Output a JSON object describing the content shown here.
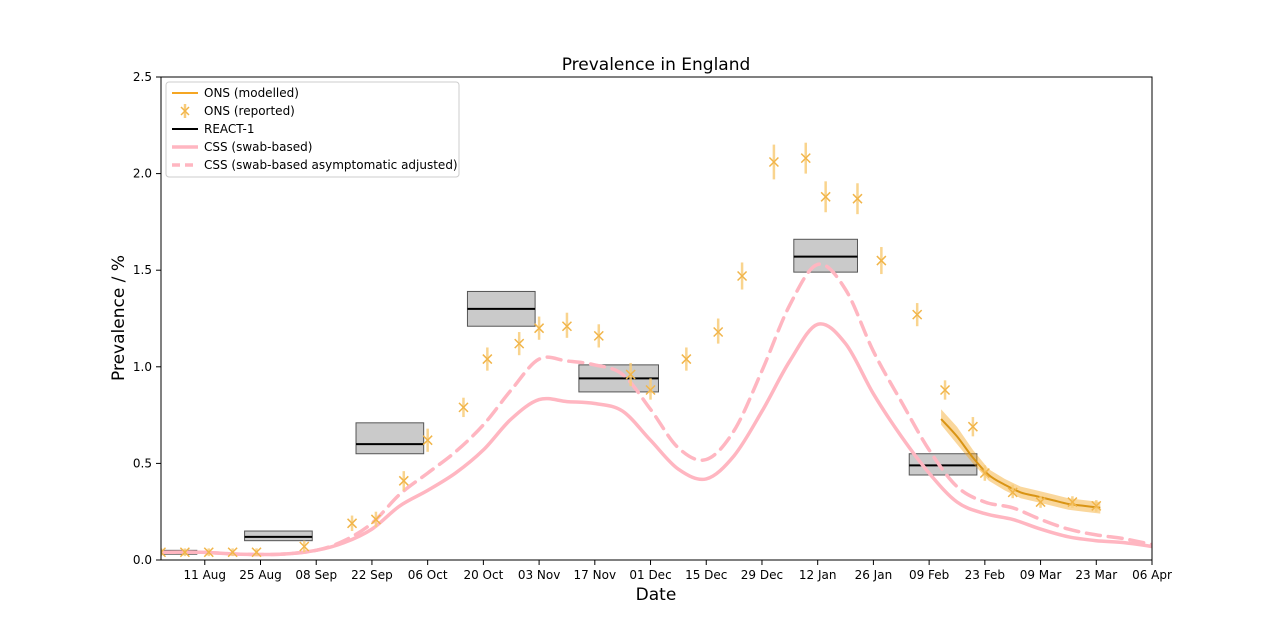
{
  "chart_data": {
    "type": "line",
    "title": "Prevalence in England",
    "xlabel": "Date",
    "ylabel": "Prevalence / %",
    "x_range": [
      "2020-07-31",
      "2021-04-06"
    ],
    "ylim": [
      0,
      2.5
    ],
    "y_ticks": [
      "0.0",
      "0.5",
      "1.0",
      "1.5",
      "2.0",
      "2.5"
    ],
    "x_ticks": [
      {
        "date": "2020-08-11",
        "label": "11 Aug"
      },
      {
        "date": "2020-08-25",
        "label": "25 Aug"
      },
      {
        "date": "2020-09-08",
        "label": "08 Sep"
      },
      {
        "date": "2020-09-22",
        "label": "22 Sep"
      },
      {
        "date": "2020-10-06",
        "label": "06 Oct"
      },
      {
        "date": "2020-10-20",
        "label": "20 Oct"
      },
      {
        "date": "2020-11-03",
        "label": "03 Nov"
      },
      {
        "date": "2020-11-17",
        "label": "17 Nov"
      },
      {
        "date": "2020-12-01",
        "label": "01 Dec"
      },
      {
        "date": "2020-12-15",
        "label": "15 Dec"
      },
      {
        "date": "2020-12-29",
        "label": "29 Dec"
      },
      {
        "date": "2021-01-12",
        "label": "12 Jan"
      },
      {
        "date": "2021-01-26",
        "label": "26 Jan"
      },
      {
        "date": "2021-02-09",
        "label": "09 Feb"
      },
      {
        "date": "2021-02-23",
        "label": "23 Feb"
      },
      {
        "date": "2021-03-09",
        "label": "09 Mar"
      },
      {
        "date": "2021-03-23",
        "label": "23 Mar"
      },
      {
        "date": "2021-04-06",
        "label": "06 Apr"
      }
    ],
    "legend_position": "top-left",
    "grid": false,
    "colors": {
      "ons": "#f5a623",
      "ons_reported": "#f8cc7a",
      "react": "#000000",
      "react_band": "#9e9e9e",
      "css": "#ffb6c1"
    },
    "legend": [
      {
        "label": "ONS (modelled)",
        "style": "ons-line"
      },
      {
        "label": "ONS (reported)",
        "style": "ons-marker"
      },
      {
        "label": "REACT-1",
        "style": "react-line"
      },
      {
        "label": "CSS (swab-based)",
        "style": "css-solid"
      },
      {
        "label": "CSS (swab-based asymptomatic adjusted)",
        "style": "css-dashed"
      }
    ],
    "series": [
      {
        "name": "CSS (swab-based)",
        "style": "solid",
        "points": [
          [
            "2020-07-31",
            0.04
          ],
          [
            "2020-08-10",
            0.04
          ],
          [
            "2020-08-20",
            0.03
          ],
          [
            "2020-08-30",
            0.03
          ],
          [
            "2020-09-08",
            0.05
          ],
          [
            "2020-09-15",
            0.09
          ],
          [
            "2020-09-22",
            0.16
          ],
          [
            "2020-09-29",
            0.28
          ],
          [
            "2020-10-06",
            0.36
          ],
          [
            "2020-10-13",
            0.45
          ],
          [
            "2020-10-20",
            0.57
          ],
          [
            "2020-10-27",
            0.73
          ],
          [
            "2020-11-03",
            0.83
          ],
          [
            "2020-11-10",
            0.82
          ],
          [
            "2020-11-17",
            0.81
          ],
          [
            "2020-11-24",
            0.77
          ],
          [
            "2020-12-01",
            0.62
          ],
          [
            "2020-12-08",
            0.47
          ],
          [
            "2020-12-15",
            0.42
          ],
          [
            "2020-12-22",
            0.54
          ],
          [
            "2020-12-29",
            0.77
          ],
          [
            "2021-01-05",
            1.03
          ],
          [
            "2021-01-12",
            1.22
          ],
          [
            "2021-01-19",
            1.12
          ],
          [
            "2021-01-26",
            0.86
          ],
          [
            "2021-02-02",
            0.64
          ],
          [
            "2021-02-09",
            0.45
          ],
          [
            "2021-02-16",
            0.3
          ],
          [
            "2021-02-23",
            0.24
          ],
          [
            "2021-03-02",
            0.21
          ],
          [
            "2021-03-09",
            0.16
          ],
          [
            "2021-03-16",
            0.12
          ],
          [
            "2021-03-23",
            0.1
          ],
          [
            "2021-03-30",
            0.09
          ],
          [
            "2021-04-06",
            0.07
          ]
        ]
      },
      {
        "name": "CSS (swab-based asymptomatic adjusted)",
        "style": "dashed",
        "points": [
          [
            "2020-07-31",
            0.04
          ],
          [
            "2020-08-10",
            0.04
          ],
          [
            "2020-08-20",
            0.03
          ],
          [
            "2020-08-30",
            0.03
          ],
          [
            "2020-09-08",
            0.05
          ],
          [
            "2020-09-15",
            0.1
          ],
          [
            "2020-09-22",
            0.19
          ],
          [
            "2020-09-29",
            0.34
          ],
          [
            "2020-10-06",
            0.45
          ],
          [
            "2020-10-13",
            0.56
          ],
          [
            "2020-10-20",
            0.7
          ],
          [
            "2020-10-27",
            0.88
          ],
          [
            "2020-11-03",
            1.04
          ],
          [
            "2020-11-10",
            1.03
          ],
          [
            "2020-11-17",
            1.01
          ],
          [
            "2020-11-24",
            0.96
          ],
          [
            "2020-12-01",
            0.78
          ],
          [
            "2020-12-08",
            0.58
          ],
          [
            "2020-12-15",
            0.52
          ],
          [
            "2020-12-22",
            0.67
          ],
          [
            "2020-12-29",
            0.98
          ],
          [
            "2021-01-05",
            1.32
          ],
          [
            "2021-01-12",
            1.53
          ],
          [
            "2021-01-19",
            1.4
          ],
          [
            "2021-01-26",
            1.08
          ],
          [
            "2021-02-02",
            0.82
          ],
          [
            "2021-02-09",
            0.57
          ],
          [
            "2021-02-16",
            0.38
          ],
          [
            "2021-02-23",
            0.3
          ],
          [
            "2021-03-02",
            0.27
          ],
          [
            "2021-03-09",
            0.21
          ],
          [
            "2021-03-16",
            0.16
          ],
          [
            "2021-03-23",
            0.13
          ],
          [
            "2021-03-30",
            0.11
          ],
          [
            "2021-04-06",
            0.08
          ]
        ]
      },
      {
        "name": "ONS (modelled)",
        "style": "solid",
        "points": [
          [
            "2021-02-12",
            0.73
          ],
          [
            "2021-02-16",
            0.64
          ],
          [
            "2021-02-20",
            0.53
          ],
          [
            "2021-02-24",
            0.44
          ],
          [
            "2021-02-28",
            0.39
          ],
          [
            "2021-03-04",
            0.35
          ],
          [
            "2021-03-08",
            0.33
          ],
          [
            "2021-03-12",
            0.31
          ],
          [
            "2021-03-16",
            0.29
          ],
          [
            "2021-03-20",
            0.28
          ],
          [
            "2021-03-24",
            0.27
          ]
        ],
        "band": [
          [
            "2021-02-12",
            0.7,
            0.78
          ],
          [
            "2021-02-16",
            0.6,
            0.69
          ],
          [
            "2021-02-20",
            0.5,
            0.57
          ],
          [
            "2021-02-24",
            0.41,
            0.47
          ],
          [
            "2021-02-28",
            0.36,
            0.42
          ],
          [
            "2021-03-04",
            0.32,
            0.38
          ],
          [
            "2021-03-08",
            0.3,
            0.36
          ],
          [
            "2021-03-12",
            0.28,
            0.34
          ],
          [
            "2021-03-16",
            0.26,
            0.32
          ],
          [
            "2021-03-20",
            0.25,
            0.31
          ],
          [
            "2021-03-24",
            0.24,
            0.3
          ]
        ]
      }
    ],
    "ons_reported": [
      {
        "date": "2020-07-31",
        "value": 0.04,
        "low": 0.02,
        "high": 0.06
      },
      {
        "date": "2020-08-06",
        "value": 0.04,
        "low": 0.02,
        "high": 0.06
      },
      {
        "date": "2020-08-12",
        "value": 0.04,
        "low": 0.02,
        "high": 0.06
      },
      {
        "date": "2020-08-18",
        "value": 0.04,
        "low": 0.02,
        "high": 0.06
      },
      {
        "date": "2020-08-24",
        "value": 0.04,
        "low": 0.02,
        "high": 0.06
      },
      {
        "date": "2020-09-05",
        "value": 0.07,
        "low": 0.04,
        "high": 0.1
      },
      {
        "date": "2020-09-17",
        "value": 0.19,
        "low": 0.15,
        "high": 0.23
      },
      {
        "date": "2020-09-23",
        "value": 0.21,
        "low": 0.17,
        "high": 0.25
      },
      {
        "date": "2020-09-30",
        "value": 0.41,
        "low": 0.36,
        "high": 0.46
      },
      {
        "date": "2020-10-06",
        "value": 0.62,
        "low": 0.56,
        "high": 0.68
      },
      {
        "date": "2020-10-15",
        "value": 0.79,
        "low": 0.74,
        "high": 0.84
      },
      {
        "date": "2020-10-21",
        "value": 1.04,
        "low": 0.98,
        "high": 1.1
      },
      {
        "date": "2020-10-29",
        "value": 1.12,
        "low": 1.06,
        "high": 1.18
      },
      {
        "date": "2020-11-03",
        "value": 1.2,
        "low": 1.14,
        "high": 1.26
      },
      {
        "date": "2020-11-10",
        "value": 1.21,
        "low": 1.15,
        "high": 1.28
      },
      {
        "date": "2020-11-18",
        "value": 1.16,
        "low": 1.1,
        "high": 1.22
      },
      {
        "date": "2020-11-26",
        "value": 0.96,
        "low": 0.9,
        "high": 1.02
      },
      {
        "date": "2020-12-01",
        "value": 0.88,
        "low": 0.83,
        "high": 0.94
      },
      {
        "date": "2020-12-10",
        "value": 1.04,
        "low": 0.98,
        "high": 1.1
      },
      {
        "date": "2020-12-18",
        "value": 1.18,
        "low": 1.12,
        "high": 1.25
      },
      {
        "date": "2020-12-24",
        "value": 1.47,
        "low": 1.4,
        "high": 1.54
      },
      {
        "date": "2021-01-01",
        "value": 2.06,
        "low": 1.97,
        "high": 2.15
      },
      {
        "date": "2021-01-09",
        "value": 2.08,
        "low": 2.0,
        "high": 2.16
      },
      {
        "date": "2021-01-14",
        "value": 1.88,
        "low": 1.8,
        "high": 1.96
      },
      {
        "date": "2021-01-22",
        "value": 1.87,
        "low": 1.79,
        "high": 1.95
      },
      {
        "date": "2021-01-28",
        "value": 1.55,
        "low": 1.48,
        "high": 1.62
      },
      {
        "date": "2021-02-06",
        "value": 1.27,
        "low": 1.21,
        "high": 1.33
      },
      {
        "date": "2021-02-13",
        "value": 0.88,
        "low": 0.83,
        "high": 0.93
      },
      {
        "date": "2021-02-20",
        "value": 0.69,
        "low": 0.64,
        "high": 0.74
      },
      {
        "date": "2021-02-23",
        "value": 0.45,
        "low": 0.41,
        "high": 0.49
      },
      {
        "date": "2021-03-02",
        "value": 0.35,
        "low": 0.32,
        "high": 0.39
      },
      {
        "date": "2021-03-09",
        "value": 0.3,
        "low": 0.27,
        "high": 0.33
      },
      {
        "date": "2021-03-17",
        "value": 0.3,
        "low": 0.27,
        "high": 0.33
      },
      {
        "date": "2021-03-23",
        "value": 0.28,
        "low": 0.25,
        "high": 0.31
      }
    ],
    "react1": [
      {
        "start": "2020-07-31",
        "end": "2020-08-09",
        "value": 0.04,
        "low": 0.03,
        "high": 0.05
      },
      {
        "start": "2020-08-21",
        "end": "2020-09-07",
        "value": 0.12,
        "low": 0.1,
        "high": 0.15
      },
      {
        "start": "2020-09-18",
        "end": "2020-10-05",
        "value": 0.6,
        "low": 0.55,
        "high": 0.71
      },
      {
        "start": "2020-10-16",
        "end": "2020-11-02",
        "value": 1.3,
        "low": 1.21,
        "high": 1.39
      },
      {
        "start": "2020-11-13",
        "end": "2020-12-03",
        "value": 0.94,
        "low": 0.87,
        "high": 1.01
      },
      {
        "start": "2021-01-06",
        "end": "2021-01-22",
        "value": 1.57,
        "low": 1.49,
        "high": 1.66
      },
      {
        "start": "2021-02-04",
        "end": "2021-02-21",
        "value": 0.49,
        "low": 0.44,
        "high": 0.55
      }
    ]
  }
}
